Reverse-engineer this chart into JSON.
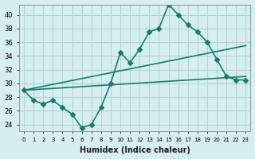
{
  "title": "",
  "xlabel": "Humidex (Indice chaleur)",
  "ylabel": "",
  "background_color": "#d6eef0",
  "grid_color": "#b0d4d8",
  "line_color": "#1a7a6e",
  "x_ticks": [
    0,
    1,
    2,
    3,
    4,
    5,
    6,
    7,
    8,
    9,
    10,
    11,
    12,
    13,
    14,
    15,
    16,
    17,
    18,
    19,
    20,
    21,
    22,
    23
  ],
  "y_ticks": [
    24,
    26,
    28,
    30,
    32,
    34,
    36,
    38,
    40
  ],
  "xlim": [
    -0.5,
    23.5
  ],
  "ylim": [
    23,
    41.5
  ],
  "line1_x": [
    0,
    1,
    2,
    3,
    4,
    5,
    6,
    7,
    8,
    9,
    10,
    11,
    12,
    13,
    14,
    15,
    16,
    17,
    18,
    19,
    20,
    21,
    22,
    23
  ],
  "line1_y": [
    29,
    27.5,
    27,
    27.5,
    26.5,
    25.5,
    23.5,
    24,
    26.5,
    30,
    34.5,
    33,
    35,
    37.5,
    38,
    41.5,
    40,
    38.5,
    37.5,
    36,
    33.5,
    31,
    30.5,
    30.5
  ],
  "line2_x": [
    0,
    23
  ],
  "line2_y": [
    29,
    35.5
  ],
  "line3_x": [
    0,
    23
  ],
  "line3_y": [
    29,
    31
  ],
  "marker_size": 3,
  "linewidth": 1.2
}
